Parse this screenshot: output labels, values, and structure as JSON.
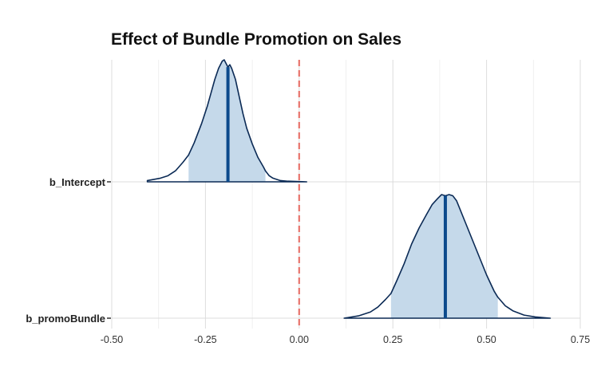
{
  "chart_data": {
    "type": "area",
    "title": "Effect of Bundle Promotion on Sales",
    "xlabel": "",
    "ylabel": "",
    "xlim": [
      -0.5,
      0.75
    ],
    "x_ticks": [
      "-0.50",
      "-0.25",
      "0.00",
      "0.25",
      "0.50",
      "0.75"
    ],
    "x_tick_values": [
      -0.5,
      -0.25,
      0,
      0.25,
      0.5,
      0.75
    ],
    "categories": [
      "b_Intercept",
      "b_promoBundle"
    ],
    "grid": true,
    "reference_line": {
      "x": 0,
      "style": "dashed",
      "color": "#e8736b"
    },
    "colors": {
      "outline": "#0b2a55",
      "fill": "#c5d9ea",
      "median": "#0c4a8c"
    },
    "series": [
      {
        "name": "b_Intercept",
        "median": -0.19,
        "interval": [
          -0.295,
          -0.09
        ],
        "density": {
          "x": [
            -0.405,
            -0.37,
            -0.35,
            -0.33,
            -0.31,
            -0.295,
            -0.28,
            -0.26,
            -0.245,
            -0.235,
            -0.225,
            -0.215,
            -0.205,
            -0.2,
            -0.195,
            -0.19,
            -0.185,
            -0.18,
            -0.17,
            -0.16,
            -0.15,
            -0.14,
            -0.125,
            -0.11,
            -0.095,
            -0.09,
            -0.08,
            -0.07,
            -0.05,
            -0.03,
            0.02
          ],
          "y": [
            0.01,
            0.03,
            0.05,
            0.09,
            0.16,
            0.22,
            0.32,
            0.48,
            0.62,
            0.73,
            0.84,
            0.93,
            0.99,
            1.0,
            0.97,
            0.94,
            0.96,
            0.93,
            0.84,
            0.7,
            0.56,
            0.44,
            0.31,
            0.2,
            0.12,
            0.09,
            0.05,
            0.03,
            0.01,
            0.005,
            0.0
          ]
        }
      },
      {
        "name": "b_promoBundle",
        "median": 0.39,
        "interval": [
          0.245,
          0.53
        ],
        "density": {
          "x": [
            0.12,
            0.16,
            0.19,
            0.21,
            0.23,
            0.245,
            0.26,
            0.28,
            0.3,
            0.32,
            0.34,
            0.355,
            0.37,
            0.38,
            0.39,
            0.4,
            0.41,
            0.42,
            0.44,
            0.46,
            0.48,
            0.5,
            0.52,
            0.53,
            0.55,
            0.57,
            0.6,
            0.63,
            0.67
          ],
          "y": [
            0.0,
            0.02,
            0.05,
            0.09,
            0.15,
            0.2,
            0.3,
            0.44,
            0.6,
            0.73,
            0.84,
            0.92,
            0.97,
            1.0,
            0.99,
            1.0,
            0.99,
            0.95,
            0.8,
            0.65,
            0.5,
            0.35,
            0.22,
            0.17,
            0.1,
            0.06,
            0.025,
            0.01,
            0.0
          ]
        }
      }
    ]
  }
}
